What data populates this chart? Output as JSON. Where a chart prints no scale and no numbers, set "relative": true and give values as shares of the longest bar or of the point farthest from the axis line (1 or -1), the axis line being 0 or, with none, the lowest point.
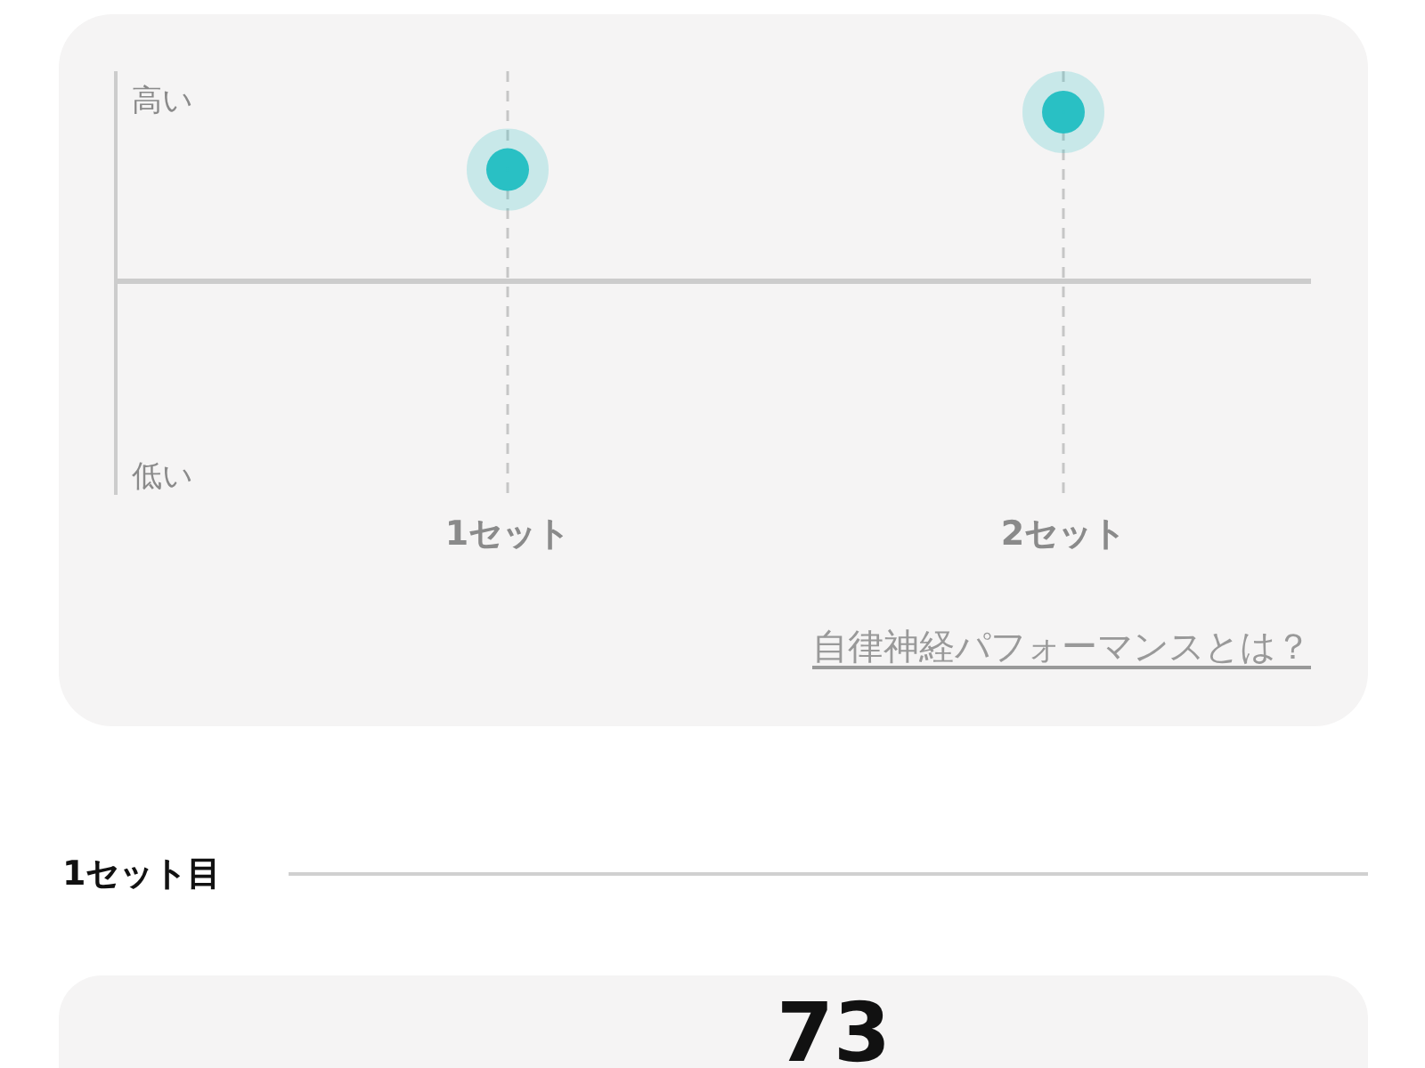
{
  "chart_data": [
    {
      "type": "scatter",
      "categories": [
        "1セット",
        "2セット"
      ],
      "values": [
        0.66,
        1
      ],
      "color": "#29c0c4",
      "relative": true,
      "grid": "x",
      "marker": "circle",
      "annotations": [
        "高い",
        "低い",
        "自律神経パフォーマンスとは？"
      ]
    },
    {
      "type": "other",
      "title": "1セット目",
      "annotations": [
        "73"
      ]
    }
  ]
}
